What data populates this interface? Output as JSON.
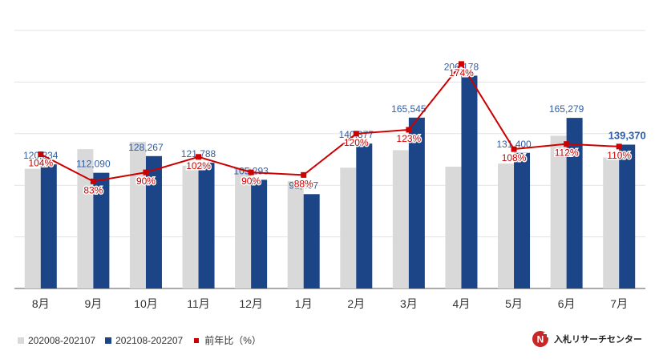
{
  "chart_data": {
    "type": "bar",
    "categories": [
      "8月",
      "9月",
      "10月",
      "11月",
      "12月",
      "1月",
      "2月",
      "3月",
      "4月",
      "5月",
      "6月",
      "7月"
    ],
    "series": [
      {
        "name": "202008-202107",
        "kind": "bar",
        "color": "#d9d9d9",
        "values": [
          116000,
          135000,
          142000,
          119000,
          117000,
          104000,
          117000,
          134000,
          118000,
          121000,
          148000,
          127000
        ]
      },
      {
        "name": "202108-202207",
        "kind": "bar",
        "color": "#1c4587",
        "values": [
          120234,
          112090,
          128267,
          121788,
          105293,
          91407,
          140377,
          165545,
          206178,
          131400,
          165279,
          139370
        ],
        "labels": [
          "120,234",
          "112,090",
          "128,267",
          "121,788",
          "105,293",
          "91,407",
          "140,377",
          "165,545",
          "206,178",
          "131,400",
          "165,279",
          "139,370"
        ]
      },
      {
        "name": "前年比（%）",
        "kind": "line",
        "color": "#cc0000",
        "axis": "secondary",
        "values": [
          104,
          83,
          90,
          102,
          90,
          88,
          120,
          123,
          174,
          108,
          112,
          110
        ],
        "labels": [
          "104%",
          "83%",
          "90%",
          "102%",
          "90%",
          "88%",
          "120%",
          "123%",
          "174%",
          "108%",
          "112%",
          "110%"
        ]
      }
    ],
    "ylim": [
      0,
      250000
    ],
    "y2lim": [
      0,
      200
    ],
    "grid": true,
    "legend": "bottom-left"
  },
  "legend": {
    "item1": "202008-202107",
    "item2": "202108-202207",
    "item3": "前年比（%）"
  },
  "brand": {
    "name": "入札リサーチセンター"
  }
}
